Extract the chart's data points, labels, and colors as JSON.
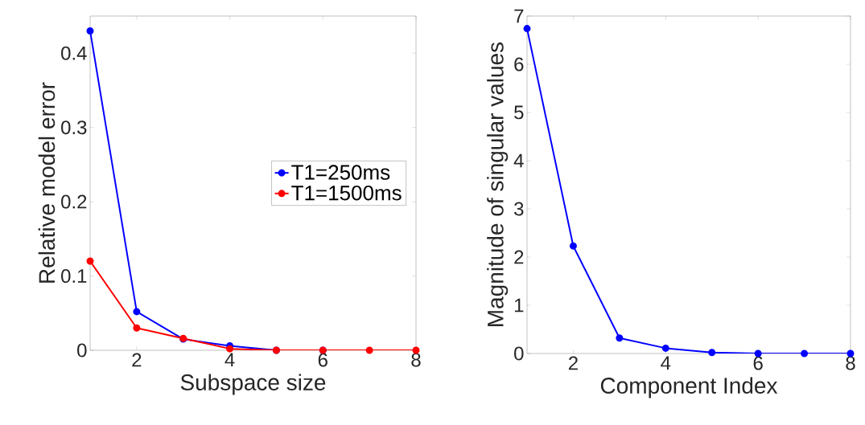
{
  "chart_data": [
    {
      "type": "line",
      "xlabel": "Subspace size",
      "ylabel": "Relative model error",
      "x": [
        1,
        2,
        3,
        4,
        5,
        6,
        7,
        8
      ],
      "xlim": [
        1,
        8
      ],
      "xticks": [
        2,
        4,
        6,
        8
      ],
      "ylim": [
        0,
        0.45
      ],
      "yticks": [
        0,
        0.1,
        0.2,
        0.3,
        0.4
      ],
      "marker": "circle",
      "legend": "right",
      "series": [
        {
          "name": "T1=250ms",
          "color": "#0000ff",
          "values": [
            0.43,
            0.052,
            0.015,
            0.006,
            0,
            0,
            null,
            null
          ]
        },
        {
          "name": "T1=1500ms",
          "color": "#ff0000",
          "values": [
            0.12,
            0.03,
            0.016,
            0.002,
            0,
            0,
            0,
            0
          ]
        }
      ]
    },
    {
      "type": "line",
      "xlabel": "Component Index",
      "ylabel": "Magnitude of singular values",
      "x": [
        1,
        2,
        3,
        4,
        5,
        6,
        7,
        8
      ],
      "xlim": [
        1,
        8
      ],
      "xticks": [
        2,
        4,
        6,
        8
      ],
      "ylim": [
        0,
        7
      ],
      "yticks": [
        0,
        1,
        2,
        3,
        4,
        5,
        6,
        7
      ],
      "marker": "circle",
      "series": [
        {
          "color": "#0000ff",
          "values": [
            6.74,
            2.23,
            0.32,
            0.11,
            0.02,
            0,
            0,
            0
          ]
        }
      ]
    }
  ]
}
